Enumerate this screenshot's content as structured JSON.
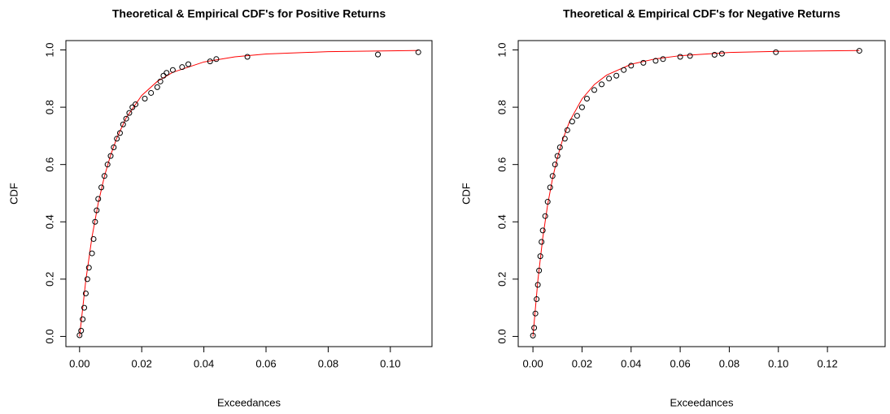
{
  "chart_data": [
    {
      "type": "scatter",
      "title": "Theoretical & Empirical CDF's for Positive Returns",
      "xlabel": "Exceedances",
      "ylabel": "CDF",
      "xlim": [
        -0.0044,
        0.1134
      ],
      "ylim": [
        -0.0356,
        1.0326
      ],
      "xticks": [
        {
          "value": 0,
          "label": "0.00"
        },
        0.02,
        0.04,
        0.06,
        0.08,
        {
          "value": 0.1,
          "label": "0.10"
        }
      ],
      "yticks": [
        {
          "value": 0,
          "label": "0.0"
        },
        0.2,
        0.4,
        0.6,
        0.8,
        {
          "value": 1,
          "label": "1.0"
        }
      ],
      "series": [
        {
          "type": "line",
          "color": "#ff0000",
          "x": [
            0,
            0.002,
            0.004,
            0.006,
            0.008,
            0.01,
            0.012,
            0.015,
            0.02,
            0.025,
            0.03,
            0.04,
            0.05,
            0.06,
            0.08,
            0.1,
            0.109
          ],
          "values": [
            0,
            0.195,
            0.347,
            0.465,
            0.559,
            0.633,
            0.693,
            0.763,
            0.841,
            0.89,
            0.922,
            0.958,
            0.976,
            0.986,
            0.994,
            0.997,
            0.998
          ]
        },
        {
          "type": "scatter",
          "color": "#000000",
          "x": [
            0,
            0.0005,
            0.001,
            0.0015,
            0.002,
            0.0025,
            0.003,
            0.004,
            0.0045,
            0.005,
            0.0055,
            0.006,
            0.007,
            0.008,
            0.009,
            0.01,
            0.011,
            0.012,
            0.013,
            0.014,
            0.015,
            0.016,
            0.017,
            0.018,
            0.021,
            0.023,
            0.025,
            0.026,
            0.027,
            0.028,
            0.03,
            0.033,
            0.035,
            0.042,
            0.044,
            0.054,
            0.096,
            0.109
          ],
          "values": [
            0.004,
            0.02,
            0.06,
            0.1,
            0.15,
            0.2,
            0.24,
            0.29,
            0.34,
            0.4,
            0.44,
            0.48,
            0.52,
            0.56,
            0.6,
            0.63,
            0.66,
            0.69,
            0.71,
            0.74,
            0.76,
            0.78,
            0.8,
            0.81,
            0.83,
            0.85,
            0.87,
            0.89,
            0.91,
            0.92,
            0.93,
            0.94,
            0.95,
            0.96,
            0.968,
            0.976,
            0.984,
            0.992
          ]
        }
      ]
    },
    {
      "type": "scatter",
      "title": "Theoretical & Empirical CDF's for Negative Returns",
      "xlabel": "Exceedances",
      "ylabel": "CDF",
      "xlim": [
        -0.006,
        0.1435
      ],
      "ylim": [
        -0.0356,
        1.0326
      ],
      "xticks": [
        {
          "value": 0,
          "label": "0.00"
        },
        0.02,
        0.04,
        0.06,
        0.08,
        {
          "value": 0.1,
          "label": "0.10"
        },
        0.12
      ],
      "yticks": [
        {
          "value": 0,
          "label": "0.0"
        },
        0.2,
        0.4,
        0.6,
        0.8,
        {
          "value": 1,
          "label": "1.0"
        }
      ],
      "series": [
        {
          "type": "line",
          "color": "#ff0000",
          "x": [
            0,
            0.002,
            0.004,
            0.006,
            0.008,
            0.01,
            0.012,
            0.015,
            0.02,
            0.025,
            0.03,
            0.04,
            0.05,
            0.06,
            0.08,
            0.1,
            0.12,
            0.133
          ],
          "values": [
            0,
            0.195,
            0.344,
            0.46,
            0.552,
            0.625,
            0.684,
            0.752,
            0.829,
            0.879,
            0.912,
            0.95,
            0.969,
            0.98,
            0.991,
            0.995,
            0.997,
            0.998
          ]
        },
        {
          "type": "scatter",
          "color": "#000000",
          "x": [
            0,
            0.0005,
            0.001,
            0.0015,
            0.002,
            0.0025,
            0.003,
            0.0035,
            0.004,
            0.005,
            0.006,
            0.007,
            0.008,
            0.009,
            0.01,
            0.011,
            0.013,
            0.014,
            0.016,
            0.018,
            0.02,
            0.022,
            0.025,
            0.028,
            0.031,
            0.034,
            0.037,
            0.04,
            0.045,
            0.05,
            0.053,
            0.06,
            0.064,
            0.074,
            0.077,
            0.099,
            0.133
          ],
          "values": [
            0.003,
            0.03,
            0.08,
            0.13,
            0.18,
            0.23,
            0.28,
            0.33,
            0.37,
            0.42,
            0.47,
            0.52,
            0.56,
            0.6,
            0.63,
            0.66,
            0.69,
            0.72,
            0.75,
            0.77,
            0.8,
            0.83,
            0.86,
            0.88,
            0.9,
            0.91,
            0.93,
            0.945,
            0.955,
            0.962,
            0.968,
            0.976,
            0.979,
            0.983,
            0.987,
            0.992,
            0.997
          ]
        }
      ]
    }
  ]
}
